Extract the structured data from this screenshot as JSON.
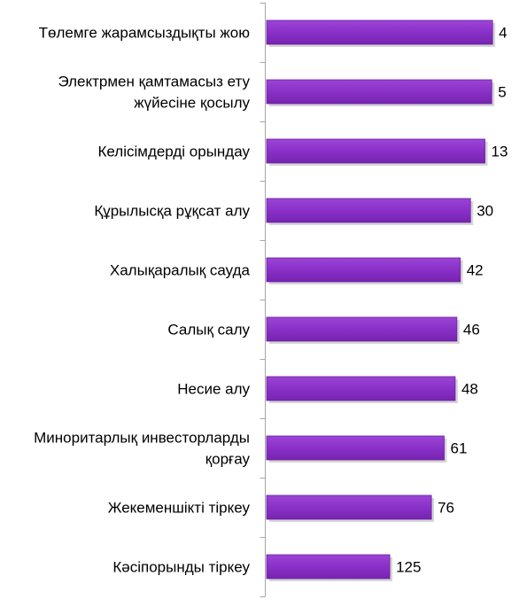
{
  "chart_data": {
    "type": "bar",
    "orientation": "horizontal",
    "categories": [
      [
        "Төлемге жарамсыздықты жою"
      ],
      [
        "Электрмен қамтамасыз ету",
        "жүйесіне қосылу"
      ],
      [
        "Келісімдерді орындау"
      ],
      [
        "Құрылысқа рұқсат алу"
      ],
      [
        "Халықаралық сауда"
      ],
      [
        "Салық салу"
      ],
      [
        "Несие алу"
      ],
      [
        "Миноритарлық инвесторларды",
        "қорғау"
      ],
      [
        "Жекеменшікті тіркеу"
      ],
      [
        "Кәсіпорынды тіркеу"
      ]
    ],
    "values": [
      4,
      5,
      13,
      30,
      42,
      46,
      48,
      61,
      76,
      125
    ],
    "value_labels": [
      "4",
      "5",
      "13",
      "30",
      "42",
      "46",
      "48",
      "61",
      "76",
      "125"
    ],
    "axis_reversed": true,
    "xlim": [
      0,
      270
    ],
    "grid": false,
    "legend": "none",
    "bar_color": "#8f35cb",
    "bar_shadow_color": "#bbbbbb",
    "axis_color": "#a6a6a6"
  }
}
